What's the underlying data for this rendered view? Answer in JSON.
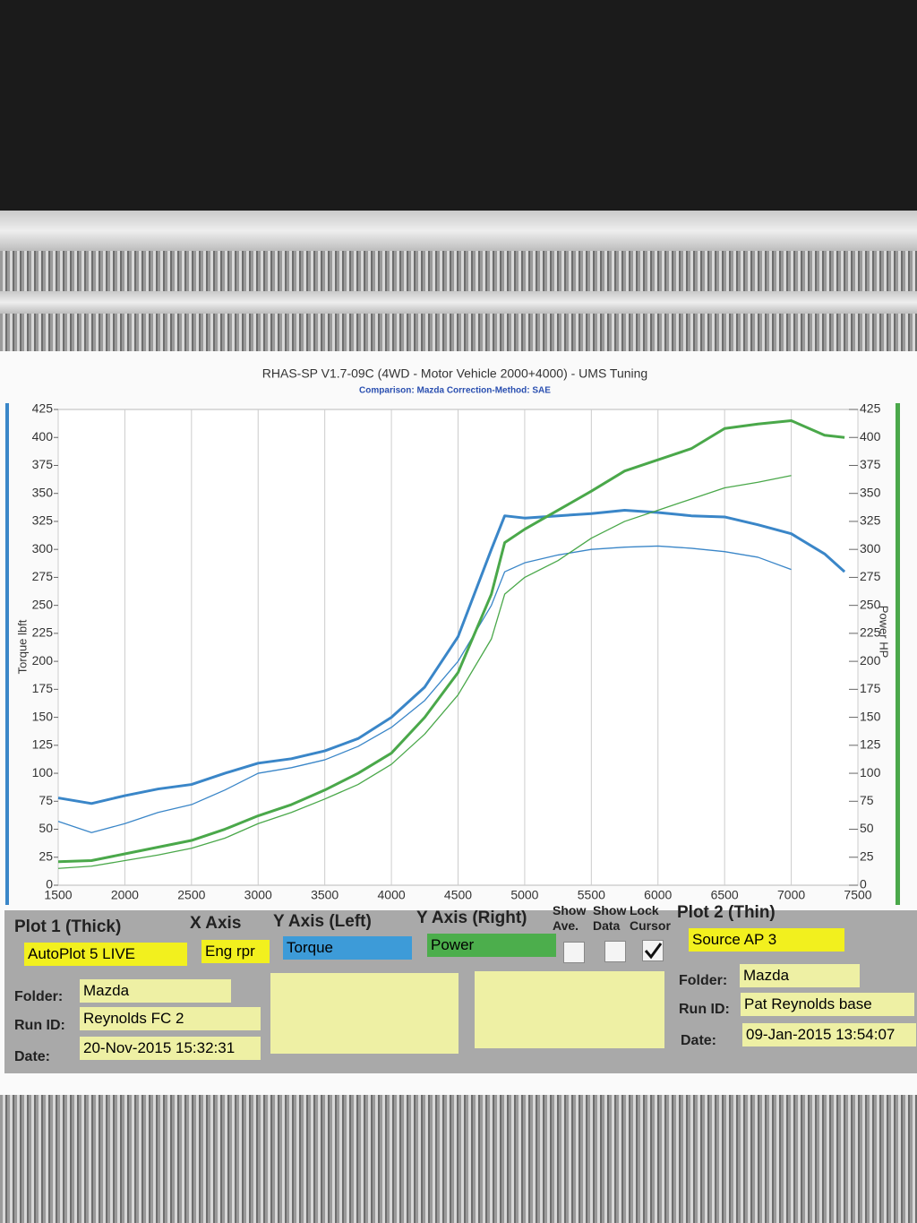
{
  "chart_data": {
    "type": "line",
    "title": "RHAS-SP V1.7-09C  (4WD - Motor Vehicle 2000+4000) - UMS Tuning",
    "subtitle": "Comparison: Mazda   Correction-Method: SAE",
    "y_label": "Torque lbft",
    "y2_label": "Power HP",
    "x": [
      1500,
      1750,
      2000,
      2250,
      2500,
      2750,
      3000,
      3250,
      3500,
      3750,
      4000,
      4250,
      4500,
      4750,
      4850,
      5000,
      5250,
      5500,
      5750,
      6000,
      6250,
      6500,
      6750,
      7000,
      7250,
      7400
    ],
    "series": [
      {
        "color": "#3a86c8",
        "width": 3,
        "values": [
          78,
          73,
          80,
          86,
          90,
          100,
          109,
          113,
          120,
          131,
          150,
          177,
          222,
          300,
          330,
          328,
          330,
          332,
          335,
          333,
          330,
          329,
          322,
          314,
          296,
          280
        ]
      },
      {
        "color": "#3a86c8",
        "width": 1.3,
        "values": [
          57,
          47,
          55,
          65,
          72,
          85,
          100,
          105,
          112,
          124,
          141,
          165,
          200,
          250,
          280,
          288,
          295,
          300,
          302,
          303,
          301,
          298,
          293,
          282,
          null,
          null
        ]
      },
      {
        "color": "#4aa84a",
        "width": 3,
        "axis": "y2",
        "values": [
          21,
          22,
          28,
          34,
          40,
          50,
          62,
          72,
          85,
          100,
          118,
          150,
          190,
          260,
          306,
          318,
          335,
          352,
          370,
          380,
          390,
          408,
          412,
          415,
          402,
          400
        ]
      },
      {
        "color": "#4aa84a",
        "width": 1.3,
        "axis": "y2",
        "values": [
          15,
          17,
          22,
          27,
          33,
          42,
          55,
          65,
          77,
          90,
          108,
          135,
          170,
          220,
          260,
          275,
          290,
          310,
          325,
          335,
          345,
          355,
          360,
          366,
          null,
          null
        ]
      }
    ],
    "xlim": [
      1500,
      7500
    ],
    "xticks": [
      1500,
      2000,
      2500,
      3000,
      3500,
      4000,
      4500,
      5000,
      5500,
      6000,
      6500,
      7000,
      7500
    ],
    "ylim": [
      0,
      425
    ],
    "yticks": [
      0,
      25,
      50,
      75,
      100,
      125,
      150,
      175,
      200,
      225,
      250,
      275,
      300,
      325,
      350,
      375,
      400,
      425
    ],
    "y2lim": [
      0,
      425
    ],
    "y2ticks": [
      0,
      25,
      50,
      75,
      100,
      125,
      150,
      175,
      200,
      225,
      250,
      275,
      300,
      325,
      350,
      375,
      400,
      425
    ],
    "grid": "x",
    "y_axis_color": "#3a86c8",
    "y2_axis_color": "#4aa84a"
  },
  "panel": {
    "plot1": {
      "heading": "Plot 1 (Thick)",
      "source": "AutoPlot 5 LIVE",
      "folder_label": "Folder:",
      "folder": "Mazda",
      "run_label": "Run ID:",
      "run": "Reynolds FC 2",
      "date_label": "Date:",
      "date": "20-Nov-2015  15:32:31"
    },
    "x_axis": {
      "heading": "X Axis",
      "value": "Eng rpr"
    },
    "y_left": {
      "heading": "Y Axis (Left)",
      "value": "Torque"
    },
    "y_right": {
      "heading": "Y Axis (Right)",
      "value": "Power"
    },
    "show_ave": "Show Ave.",
    "show_data": "Show Data",
    "lock_cursor": "Lock Cursor",
    "lock_cursor_checked": true,
    "plot2": {
      "heading": "Plot 2 (Thin)",
      "source": "Source AP 3",
      "folder_label": "Folder:",
      "folder": "Mazda",
      "run_label": "Run ID:",
      "run": "Pat Reynolds base",
      "date_label": "Date:",
      "date": "09-Jan-2015  13:54:07"
    }
  }
}
